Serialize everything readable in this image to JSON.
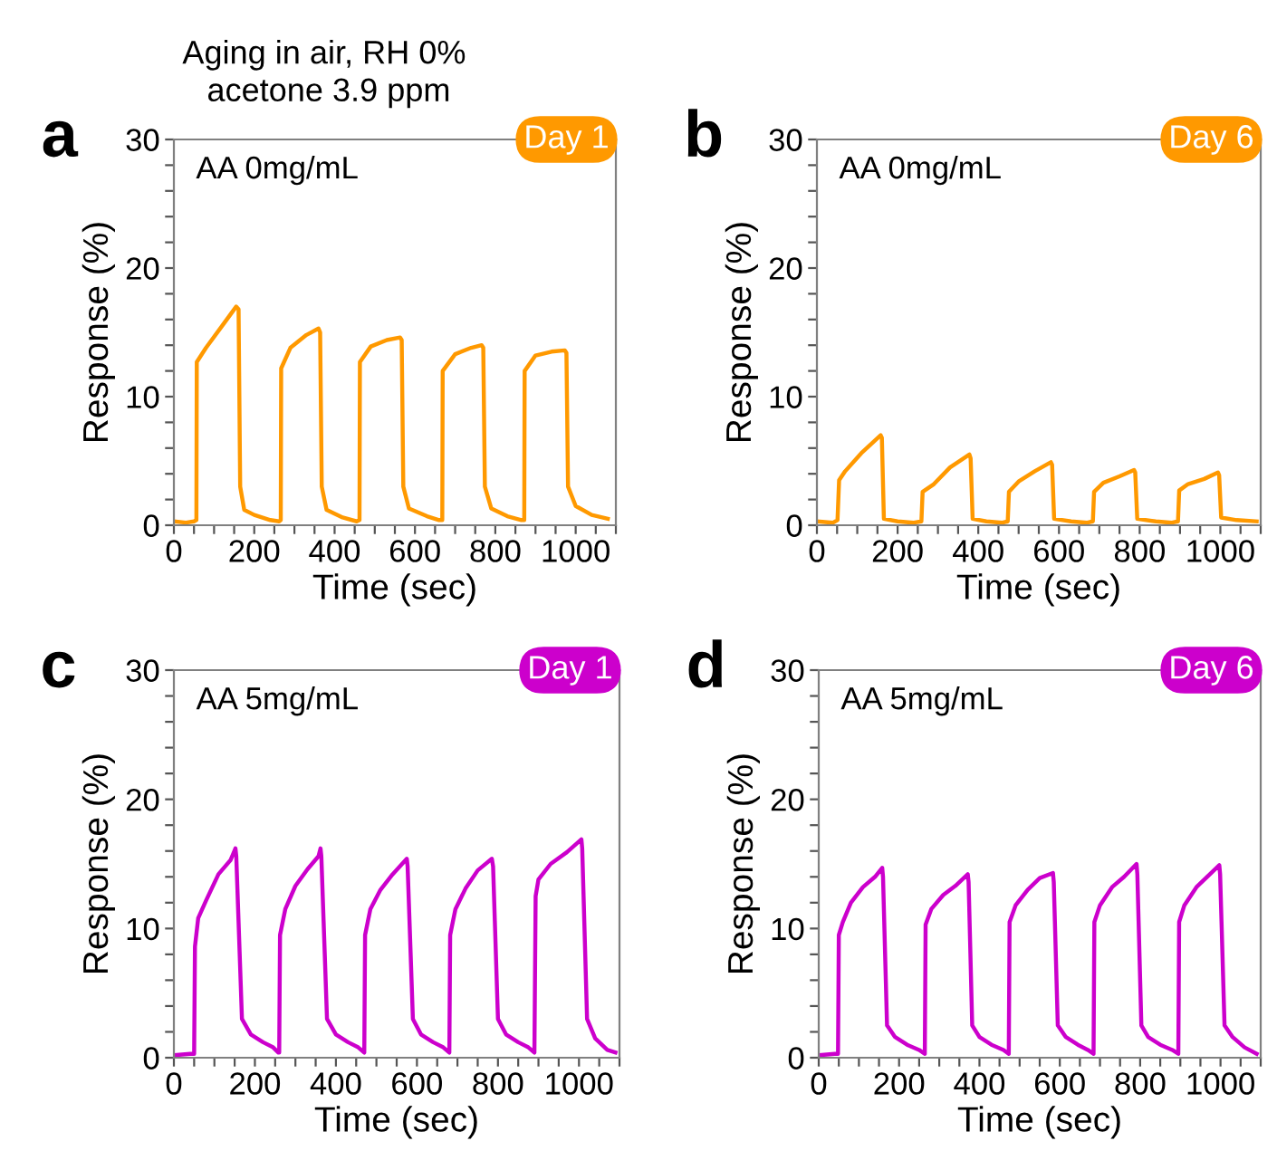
{
  "chart_data": [
    {
      "type": "line",
      "xlabel": "Time (sec)",
      "ylabel": "Response (%)",
      "xlim": [
        0,
        1100
      ],
      "ylim": [
        0,
        30
      ],
      "xticks": [
        0,
        {
          "value": 50,
          "label": null
        },
        {
          "value": 100,
          "label": null
        },
        {
          "value": 150,
          "label": null
        },
        200,
        {
          "value": 250,
          "label": null
        },
        {
          "value": 300,
          "label": null
        },
        {
          "value": 350,
          "label": null
        },
        400,
        {
          "value": 450,
          "label": null
        },
        {
          "value": 500,
          "label": null
        },
        {
          "value": 550,
          "label": null
        },
        600,
        {
          "value": 650,
          "label": null
        },
        {
          "value": 700,
          "label": null
        },
        {
          "value": 750,
          "label": null
        },
        800,
        {
          "value": 850,
          "label": null
        },
        {
          "value": 900,
          "label": null
        },
        {
          "value": 950,
          "label": null
        },
        1000,
        {
          "value": 1050,
          "label": null
        },
        {
          "value": 1100,
          "label": null
        }
      ],
      "yticks": [
        0,
        {
          "value": 2,
          "label": null
        },
        {
          "value": 4,
          "label": null
        },
        {
          "value": 6,
          "label": null
        },
        {
          "value": 8,
          "label": null
        },
        10,
        {
          "value": 12,
          "label": null
        },
        {
          "value": 14,
          "label": null
        },
        {
          "value": 16,
          "label": null
        },
        {
          "value": 18,
          "label": null
        },
        20,
        {
          "value": 22,
          "label": null
        },
        {
          "value": 24,
          "label": null
        },
        {
          "value": 26,
          "label": null
        },
        {
          "value": 28,
          "label": null
        },
        30
      ],
      "annotations": [
        "a",
        "AA 0mg/mL",
        "Day 1",
        "Aging in air, RH 0%\n acetone 3.9 ppm"
      ],
      "x": [
        0,
        30,
        50,
        56,
        57,
        80,
        120,
        155,
        161,
        165,
        175,
        200,
        240,
        262,
        266,
        267,
        290,
        330,
        360,
        364,
        368,
        380,
        420,
        455,
        462,
        463,
        490,
        530,
        563,
        567,
        571,
        585,
        630,
        660,
        668,
        669,
        700,
        740,
        766,
        770,
        774,
        790,
        830,
        865,
        872,
        873,
        900,
        940,
        973,
        977,
        981,
        1000,
        1040,
        1080
      ],
      "series": [
        {
          "color": "#ff9900",
          "values": [
            0.3,
            0.2,
            0.3,
            0.4,
            12.7,
            13.8,
            15.5,
            17.0,
            16.8,
            3.0,
            1.2,
            0.8,
            0.4,
            0.3,
            0.4,
            12.2,
            13.8,
            14.8,
            15.3,
            15.0,
            3.0,
            1.2,
            0.6,
            0.3,
            0.4,
            12.7,
            13.9,
            14.4,
            14.6,
            14.4,
            3.0,
            1.3,
            0.7,
            0.4,
            0.4,
            12.0,
            13.3,
            13.8,
            14.0,
            13.8,
            3.0,
            1.3,
            0.7,
            0.4,
            0.4,
            12.0,
            13.2,
            13.5,
            13.6,
            13.4,
            3.0,
            1.5,
            0.8,
            0.5
          ]
        }
      ]
    },
    {
      "type": "line",
      "xlabel": "Time (sec)",
      "ylabel": "Response (%)",
      "xlim": [
        0,
        1100
      ],
      "ylim": [
        0,
        30
      ],
      "xticks": [
        0,
        {
          "value": 50,
          "label": null
        },
        {
          "value": 100,
          "label": null
        },
        {
          "value": 150,
          "label": null
        },
        200,
        {
          "value": 250,
          "label": null
        },
        {
          "value": 300,
          "label": null
        },
        {
          "value": 350,
          "label": null
        },
        400,
        {
          "value": 450,
          "label": null
        },
        {
          "value": 500,
          "label": null
        },
        {
          "value": 550,
          "label": null
        },
        600,
        {
          "value": 650,
          "label": null
        },
        {
          "value": 700,
          "label": null
        },
        {
          "value": 750,
          "label": null
        },
        800,
        {
          "value": 850,
          "label": null
        },
        {
          "value": 900,
          "label": null
        },
        {
          "value": 950,
          "label": null
        },
        1000,
        {
          "value": 1050,
          "label": null
        },
        {
          "value": 1100,
          "label": null
        }
      ],
      "yticks": [
        0,
        {
          "value": 2,
          "label": null
        },
        {
          "value": 4,
          "label": null
        },
        {
          "value": 6,
          "label": null
        },
        {
          "value": 8,
          "label": null
        },
        10,
        {
          "value": 12,
          "label": null
        },
        {
          "value": 14,
          "label": null
        },
        {
          "value": 16,
          "label": null
        },
        {
          "value": 18,
          "label": null
        },
        20,
        {
          "value": 22,
          "label": null
        },
        {
          "value": 24,
          "label": null
        },
        {
          "value": 26,
          "label": null
        },
        {
          "value": 28,
          "label": null
        },
        30
      ],
      "annotations": [
        "b",
        "AA 0mg/mL",
        "Day 6"
      ],
      "x": [
        0,
        40,
        51,
        55,
        70,
        110,
        158,
        161,
        166,
        200,
        240,
        259,
        262,
        290,
        330,
        378,
        381,
        386,
        420,
        460,
        473,
        476,
        500,
        540,
        580,
        583,
        588,
        630,
        670,
        684,
        687,
        710,
        750,
        786,
        789,
        794,
        840,
        880,
        895,
        898,
        920,
        960,
        994,
        997,
        1002,
        1040,
        1090
      ],
      "series": [
        {
          "color": "#ff9900",
          "values": [
            0.3,
            0.2,
            0.4,
            3.5,
            4.2,
            5.6,
            7.0,
            6.8,
            0.5,
            0.3,
            0.2,
            0.3,
            2.6,
            3.2,
            4.5,
            5.5,
            5.2,
            0.5,
            0.3,
            0.2,
            0.3,
            2.6,
            3.4,
            4.2,
            4.9,
            4.7,
            0.5,
            0.3,
            0.2,
            0.3,
            2.6,
            3.3,
            3.8,
            4.3,
            4.1,
            0.5,
            0.3,
            0.2,
            0.3,
            2.7,
            3.2,
            3.6,
            4.1,
            3.9,
            0.6,
            0.4,
            0.3
          ]
        }
      ]
    },
    {
      "type": "line",
      "xlabel": "Time (sec)",
      "ylabel": "Response (%)",
      "xlim": [
        0,
        1100
      ],
      "ylim": [
        0,
        30
      ],
      "xticks": [
        0,
        {
          "value": 50,
          "label": null
        },
        {
          "value": 100,
          "label": null
        },
        {
          "value": 150,
          "label": null
        },
        200,
        {
          "value": 250,
          "label": null
        },
        {
          "value": 300,
          "label": null
        },
        {
          "value": 350,
          "label": null
        },
        400,
        {
          "value": 450,
          "label": null
        },
        {
          "value": 500,
          "label": null
        },
        {
          "value": 550,
          "label": null
        },
        600,
        {
          "value": 650,
          "label": null
        },
        {
          "value": 700,
          "label": null
        },
        {
          "value": 750,
          "label": null
        },
        800,
        {
          "value": 850,
          "label": null
        },
        {
          "value": 900,
          "label": null
        },
        {
          "value": 950,
          "label": null
        },
        1000,
        {
          "value": 1050,
          "label": null
        },
        {
          "value": 1100,
          "label": null
        }
      ],
      "yticks": [
        0,
        {
          "value": 2,
          "label": null
        },
        {
          "value": 4,
          "label": null
        },
        {
          "value": 6,
          "label": null
        },
        {
          "value": 8,
          "label": null
        },
        10,
        {
          "value": 12,
          "label": null
        },
        {
          "value": 14,
          "label": null
        },
        {
          "value": 16,
          "label": null
        },
        {
          "value": 18,
          "label": null
        },
        20,
        {
          "value": 22,
          "label": null
        },
        {
          "value": 24,
          "label": null
        },
        {
          "value": 26,
          "label": null
        },
        {
          "value": 28,
          "label": null
        },
        30
      ],
      "annotations": [
        "c",
        "AA 5mg/mL",
        "Day 1"
      ],
      "x": [
        0,
        40,
        50,
        52,
        60,
        80,
        110,
        140,
        152,
        154,
        168,
        190,
        220,
        245,
        258,
        260,
        262,
        275,
        300,
        330,
        357,
        362,
        364,
        378,
        400,
        430,
        455,
        470,
        472,
        485,
        510,
        540,
        575,
        577,
        590,
        610,
        640,
        665,
        680,
        682,
        695,
        720,
        750,
        785,
        788,
        800,
        820,
        850,
        875,
        890,
        893,
        900,
        930,
        970,
        1006,
        1008,
        1020,
        1040,
        1070,
        1090
      ],
      "series": [
        {
          "color": "#cc00cc",
          "values": [
            0.2,
            0.3,
            0.3,
            8.6,
            10.8,
            12.2,
            14.2,
            15.3,
            16.2,
            15.6,
            3.0,
            1.8,
            1.2,
            0.8,
            0.4,
            0.4,
            9.5,
            11.5,
            13.3,
            14.6,
            15.6,
            16.2,
            15.6,
            3.0,
            1.8,
            1.2,
            0.8,
            0.4,
            9.5,
            11.5,
            13.0,
            14.2,
            15.4,
            14.8,
            3.0,
            1.8,
            1.2,
            0.8,
            0.4,
            9.5,
            11.5,
            13.1,
            14.5,
            15.4,
            14.8,
            3.0,
            1.8,
            1.2,
            0.8,
            0.4,
            12.5,
            13.8,
            15.0,
            15.9,
            16.9,
            16.2,
            3.0,
            1.5,
            0.6,
            0.4
          ]
        }
      ]
    },
    {
      "type": "line",
      "xlabel": "Time (sec)",
      "ylabel": "Response (%)",
      "xlim": [
        0,
        1100
      ],
      "ylim": [
        0,
        30
      ],
      "xticks": [
        0,
        {
          "value": 50,
          "label": null
        },
        {
          "value": 100,
          "label": null
        },
        {
          "value": 150,
          "label": null
        },
        200,
        {
          "value": 250,
          "label": null
        },
        {
          "value": 300,
          "label": null
        },
        {
          "value": 350,
          "label": null
        },
        400,
        {
          "value": 450,
          "label": null
        },
        {
          "value": 500,
          "label": null
        },
        {
          "value": 550,
          "label": null
        },
        600,
        {
          "value": 650,
          "label": null
        },
        {
          "value": 700,
          "label": null
        },
        {
          "value": 750,
          "label": null
        },
        800,
        {
          "value": 850,
          "label": null
        },
        {
          "value": 900,
          "label": null
        },
        {
          "value": 950,
          "label": null
        },
        1000,
        {
          "value": 1050,
          "label": null
        },
        {
          "value": 1100,
          "label": null
        }
      ],
      "yticks": [
        0,
        {
          "value": 2,
          "label": null
        },
        {
          "value": 4,
          "label": null
        },
        {
          "value": 6,
          "label": null
        },
        {
          "value": 8,
          "label": null
        },
        10,
        {
          "value": 12,
          "label": null
        },
        {
          "value": 14,
          "label": null
        },
        {
          "value": 16,
          "label": null
        },
        {
          "value": 18,
          "label": null
        },
        20,
        {
          "value": 22,
          "label": null
        },
        {
          "value": 24,
          "label": null
        },
        {
          "value": 26,
          "label": null
        },
        {
          "value": 28,
          "label": null
        },
        30
      ],
      "annotations": [
        "d",
        "AA 5mg/mL",
        "Day 6"
      ],
      "x": [
        0,
        40,
        48,
        50,
        60,
        80,
        110,
        140,
        158,
        160,
        170,
        190,
        220,
        250,
        264,
        266,
        280,
        310,
        340,
        371,
        373,
        382,
        400,
        430,
        460,
        473,
        475,
        490,
        520,
        550,
        583,
        585,
        595,
        615,
        645,
        670,
        684,
        686,
        700,
        730,
        760,
        791,
        793,
        803,
        820,
        850,
        880,
        895,
        897,
        910,
        940,
        970,
        997,
        999,
        1010,
        1030,
        1060,
        1090
      ],
      "series": [
        {
          "color": "#cc00cc",
          "values": [
            0.2,
            0.3,
            0.3,
            9.5,
            10.5,
            12.0,
            13.2,
            14.0,
            14.7,
            14.0,
            2.5,
            1.6,
            1.0,
            0.6,
            0.3,
            10.3,
            11.5,
            12.6,
            13.3,
            14.2,
            13.6,
            2.5,
            1.6,
            1.0,
            0.6,
            0.3,
            10.5,
            11.8,
            13.0,
            13.9,
            14.3,
            13.6,
            2.5,
            1.6,
            1.0,
            0.6,
            0.3,
            10.5,
            11.8,
            13.2,
            14.0,
            15.0,
            14.2,
            2.5,
            1.6,
            1.0,
            0.6,
            0.3,
            10.5,
            11.8,
            13.2,
            14.1,
            14.9,
            14.2,
            2.5,
            1.6,
            0.8,
            0.3
          ]
        }
      ]
    }
  ]
}
